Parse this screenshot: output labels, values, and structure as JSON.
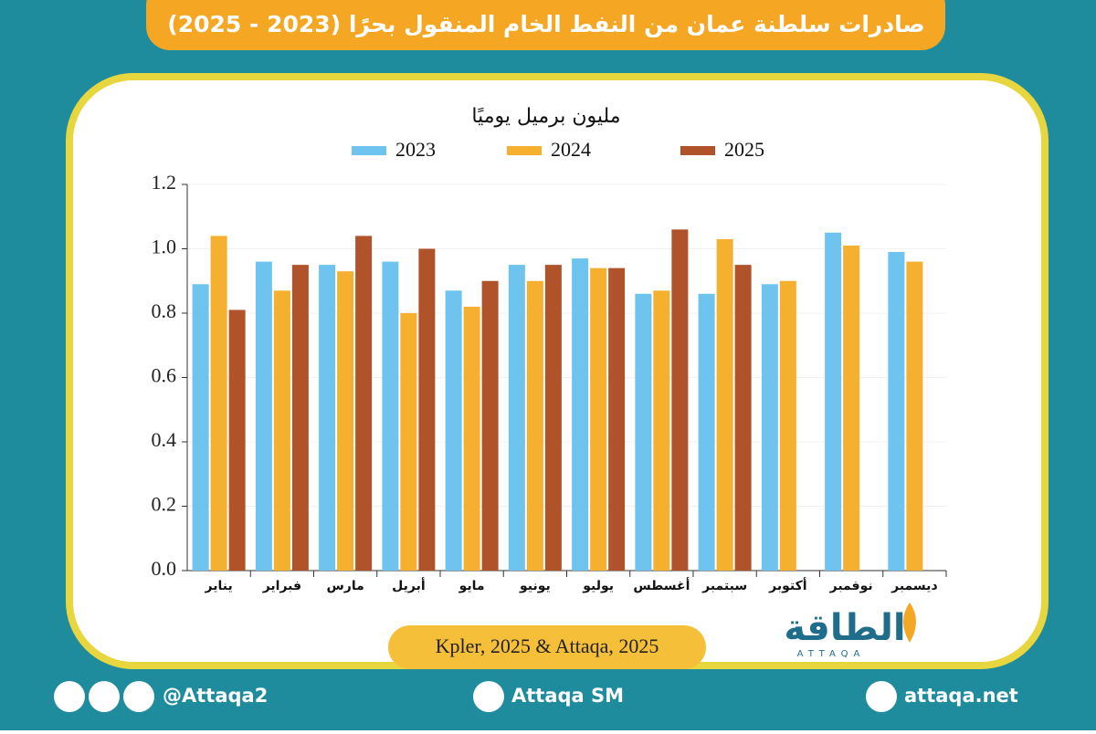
{
  "chart_data": {
    "type": "bar",
    "title": "صادرات سلطنة عمان من النفط الخام المنقول بحرًا (2023 - 2025)",
    "y_label": "مليون برميل يوميًا",
    "categories": [
      "يناير",
      "فبراير",
      "مارس",
      "أبريل",
      "مايو",
      "يونيو",
      "يوليو",
      "أغسطس",
      "سبتمبر",
      "أكتوبر",
      "نوفمبر",
      "ديسمبر"
    ],
    "series": [
      {
        "name": "2023",
        "color": "#6ec4ef",
        "values": [
          0.89,
          0.96,
          0.95,
          0.96,
          0.87,
          0.95,
          0.97,
          0.86,
          0.86,
          0.89,
          1.05,
          0.99
        ]
      },
      {
        "name": "2024",
        "color": "#f4b02e",
        "values": [
          1.04,
          0.87,
          0.93,
          0.8,
          0.82,
          0.9,
          0.94,
          0.87,
          1.03,
          0.9,
          1.01,
          0.96
        ]
      },
      {
        "name": "2025",
        "color": "#b0532b",
        "values": [
          0.81,
          0.95,
          1.04,
          1.0,
          0.9,
          0.95,
          0.94,
          1.06,
          0.95,
          null,
          null,
          null
        ]
      }
    ],
    "ylim": [
      0,
      1.2
    ],
    "yticks": [
      {
        "value": 0,
        "label": "0.0"
      },
      0.2,
      0.4,
      0.6,
      0.8,
      {
        "value": 1,
        "label": "1.0"
      },
      1.2
    ],
    "grid": true,
    "source": "Kpler, 2025 & Attaqa, 2025"
  },
  "logo": {
    "name": "الطاقة",
    "latin": "ATTAQA"
  },
  "footer": {
    "social": "@Attaqa2",
    "youtube": "Attaqa SM",
    "website": "attaqa.net"
  }
}
